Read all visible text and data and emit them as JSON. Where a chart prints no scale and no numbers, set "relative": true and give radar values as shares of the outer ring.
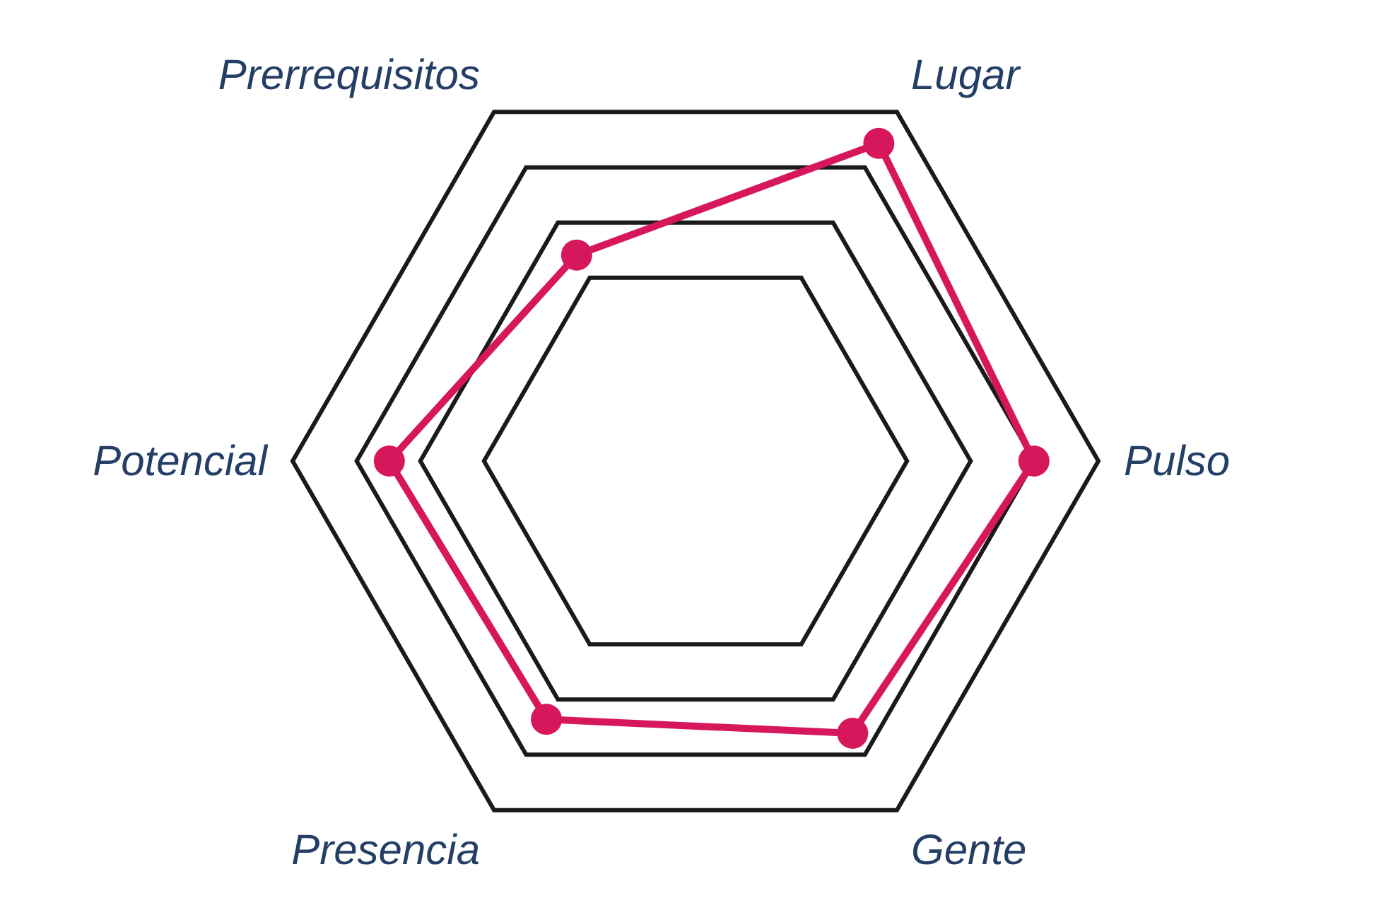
{
  "chart_data": {
    "type": "radar",
    "relative": true,
    "categories": [
      "Lugar",
      "Pulso",
      "Gente",
      "Presencia",
      "Potencial",
      "Prerrequisitos"
    ],
    "series": [
      {
        "color": "#d6175c",
        "values": [
          0.91,
          0.84,
          0.78,
          0.74,
          0.76,
          0.59
        ]
      }
    ],
    "grid": true,
    "marker": "circle"
  }
}
